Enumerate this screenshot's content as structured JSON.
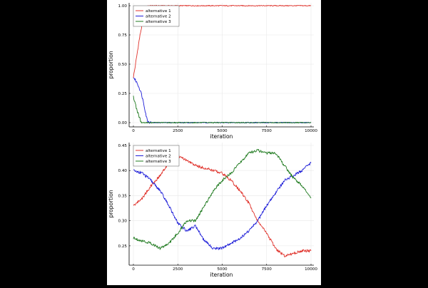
{
  "chart_data": [
    {
      "type": "line",
      "title": "",
      "xlabel": "iteration",
      "ylabel": "proportion",
      "xlim": [
        0,
        10000
      ],
      "ylim": [
        0,
        1
      ],
      "xticks": [
        0,
        2500,
        5000,
        7500,
        10000
      ],
      "xtick_labels": [
        "0",
        "2500",
        "5000",
        "7500",
        "10000"
      ],
      "yticks": [
        0,
        0.25,
        0.5,
        0.75,
        1.0
      ],
      "ytick_labels": [
        "0.00",
        "0.25",
        "0.50",
        "0.75",
        "1.00"
      ],
      "grid": true,
      "legend_position": "top-left",
      "series": [
        {
          "name": "alternative 1",
          "color": "#e0332c",
          "x": [
            0,
            80,
            160,
            240,
            320,
            400,
            480,
            560,
            640,
            720,
            800,
            1000,
            2500,
            5000,
            7500,
            10000
          ],
          "y": [
            0.39,
            0.46,
            0.54,
            0.62,
            0.7,
            0.77,
            0.83,
            0.89,
            0.94,
            0.98,
            1.0,
            1.0,
            1.0,
            1.0,
            1.0,
            1.0
          ]
        },
        {
          "name": "alternative 2",
          "color": "#1f1fd8",
          "x": [
            0,
            80,
            160,
            240,
            320,
            400,
            480,
            560,
            640,
            720,
            800,
            1000,
            2500,
            5000,
            7500,
            10000
          ],
          "y": [
            0.39,
            0.37,
            0.35,
            0.33,
            0.3,
            0.27,
            0.23,
            0.18,
            0.12,
            0.06,
            0.01,
            0.0,
            0.0,
            0.0,
            0.0,
            0.0
          ]
        },
        {
          "name": "alternative 3",
          "color": "#1f7a1f",
          "x": [
            0,
            80,
            160,
            240,
            320,
            400,
            480,
            560,
            640,
            720,
            800,
            1000,
            2500,
            5000,
            7500,
            10000
          ],
          "y": [
            0.22,
            0.18,
            0.13,
            0.09,
            0.05,
            0.02,
            0.0,
            0.0,
            0.0,
            0.0,
            0.0,
            0.0,
            0.0,
            0.0,
            0.0,
            0.0
          ]
        }
      ]
    },
    {
      "type": "line",
      "title": "",
      "xlabel": "iteration",
      "ylabel": "proportion",
      "xlim": [
        0,
        10000
      ],
      "ylim": [
        0.22,
        0.45
      ],
      "xticks": [
        0,
        2500,
        5000,
        7500,
        10000
      ],
      "xtick_labels": [
        "0",
        "2500",
        "5000",
        "7500",
        "10000"
      ],
      "yticks": [
        0.25,
        0.3,
        0.35,
        0.4,
        0.45
      ],
      "ytick_labels": [
        "0.25",
        "0.30",
        "0.35",
        "0.40",
        "0.45"
      ],
      "grid": true,
      "legend_position": "top-left",
      "series": [
        {
          "name": "alternative 1",
          "color": "#e0332c",
          "x": [
            0,
            500,
            1000,
            1500,
            2000,
            2500,
            3000,
            3500,
            4000,
            4500,
            5000,
            5500,
            6000,
            6500,
            7000,
            7500,
            8000,
            8500,
            9000,
            9500,
            10000
          ],
          "y": [
            0.33,
            0.345,
            0.37,
            0.39,
            0.415,
            0.43,
            0.42,
            0.41,
            0.405,
            0.4,
            0.395,
            0.38,
            0.36,
            0.335,
            0.3,
            0.275,
            0.245,
            0.23,
            0.235,
            0.24,
            0.24
          ]
        },
        {
          "name": "alternative 2",
          "color": "#1f1fd8",
          "x": [
            0,
            500,
            1000,
            1500,
            2000,
            2500,
            3000,
            3500,
            4000,
            4500,
            5000,
            5500,
            6000,
            6500,
            7000,
            7500,
            8000,
            8500,
            9000,
            9500,
            10000
          ],
          "y": [
            0.4,
            0.395,
            0.38,
            0.36,
            0.33,
            0.295,
            0.28,
            0.29,
            0.26,
            0.245,
            0.245,
            0.255,
            0.265,
            0.28,
            0.3,
            0.33,
            0.355,
            0.38,
            0.39,
            0.4,
            0.415
          ]
        },
        {
          "name": "alternative 3",
          "color": "#1f7a1f",
          "x": [
            0,
            500,
            1000,
            1500,
            2000,
            2500,
            3000,
            3500,
            4000,
            4500,
            5000,
            5500,
            6000,
            6500,
            7000,
            7500,
            8000,
            8500,
            9000,
            9500,
            10000
          ],
          "y": [
            0.265,
            0.26,
            0.255,
            0.245,
            0.255,
            0.275,
            0.3,
            0.3,
            0.33,
            0.36,
            0.38,
            0.395,
            0.415,
            0.435,
            0.44,
            0.435,
            0.435,
            0.41,
            0.385,
            0.37,
            0.345
          ]
        }
      ]
    }
  ]
}
